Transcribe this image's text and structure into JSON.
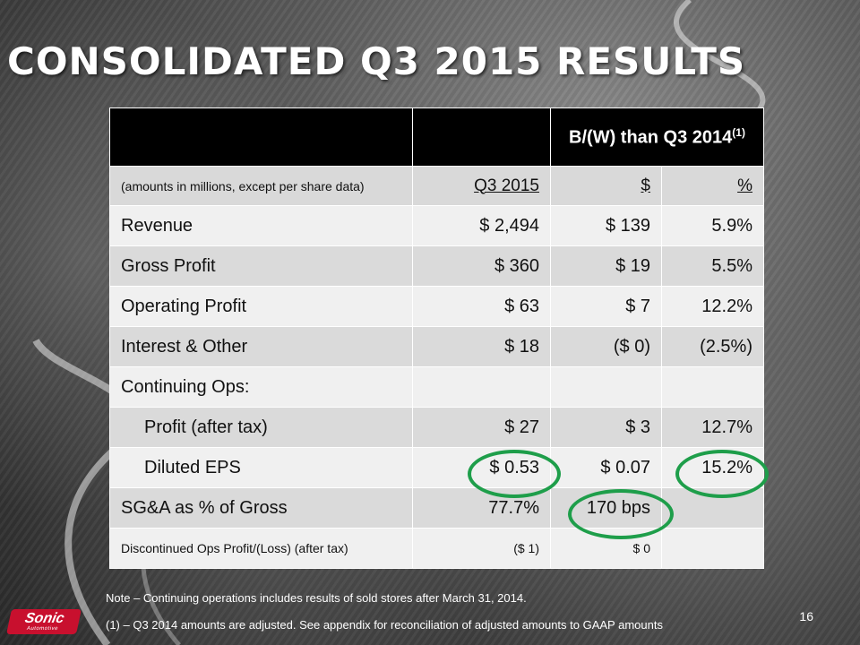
{
  "title": "CONSOLIDATED Q3 2015 RESULTS",
  "table": {
    "header": {
      "label": "B/(W) than Q3 2014",
      "superscript": "(1)"
    },
    "subheader": {
      "label": "(amounts in millions, except per share data)",
      "col1": "Q3 2015",
      "col2": "$",
      "col3": "%"
    },
    "rows": [
      {
        "label": "Revenue",
        "q3": "$ 2,494",
        "dollar": "$ 139",
        "pct": "5.9%"
      },
      {
        "label": "Gross Profit",
        "q3": "$ 360",
        "dollar": "$ 19",
        "pct": "5.5%"
      },
      {
        "label": "Operating Profit",
        "q3": "$ 63",
        "dollar": "$ 7",
        "pct": "12.2%"
      },
      {
        "label": "Interest & Other",
        "q3": "$ 18",
        "dollar": "($ 0)",
        "pct": "(2.5%)"
      },
      {
        "label": "Continuing Ops:",
        "q3": "",
        "dollar": "",
        "pct": ""
      },
      {
        "label": "Profit (after tax)",
        "q3": "$ 27",
        "dollar": "$ 3",
        "pct": "12.7%"
      },
      {
        "label": "Diluted EPS",
        "q3": "$ 0.53",
        "dollar": "$ 0.07",
        "pct": "15.2%"
      },
      {
        "label": "SG&A as % of Gross",
        "q3": "77.7%",
        "dollar": "170 bps",
        "pct": ""
      },
      {
        "label": "Discontinued Ops Profit/(Loss)  (after tax)",
        "q3": "($ 1)",
        "dollar": "$ 0",
        "pct": ""
      }
    ]
  },
  "note": "Note – Continuing operations includes results of sold stores after March 31, 2014.",
  "footnote": "(1) – Q3 2014 amounts are adjusted.  See appendix for reconciliation of adjusted amounts to GAAP amounts",
  "page_number": "16",
  "logo": {
    "name": "Sonic",
    "tagline": "Automotive"
  },
  "colors": {
    "highlight_circle": "#1e9e4a",
    "header_bg": "#000000"
  }
}
